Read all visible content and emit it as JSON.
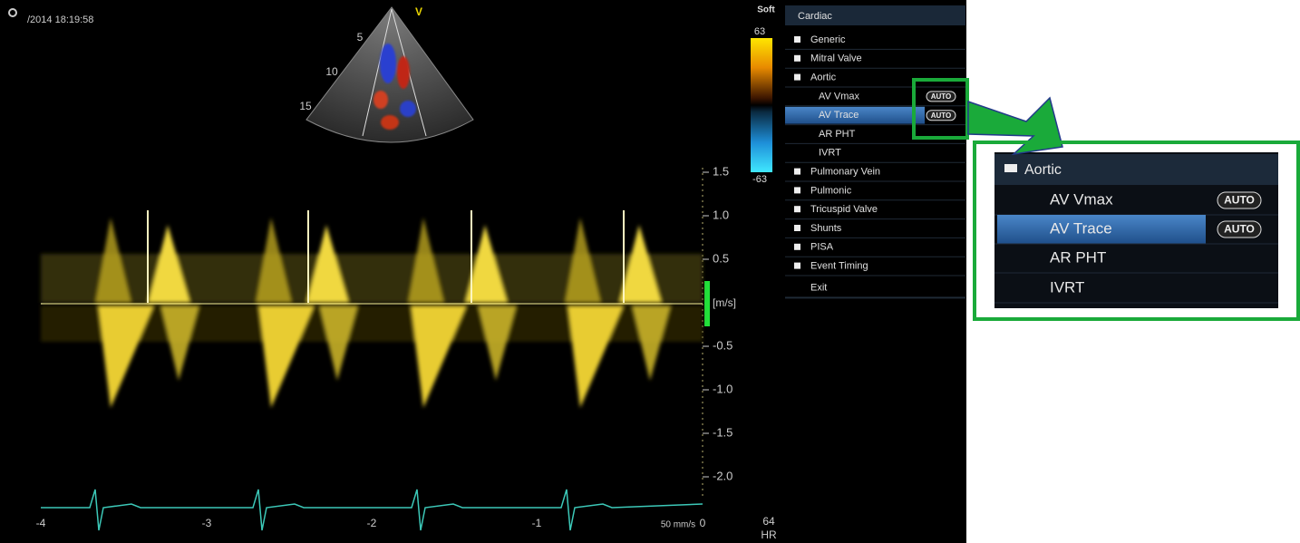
{
  "scan": {
    "timestamp": "/2014 18:19:58",
    "mode_label": "V",
    "depth_labels": [
      "5",
      "10",
      "15"
    ],
    "color_map": {
      "name": "Soft",
      "max": "63",
      "min": "-63"
    },
    "velocity_labels": [
      "1.5",
      "1.0",
      "0.5",
      "-0.5",
      "-1.0",
      "-1.5",
      "-2.0"
    ],
    "velocity_unit": "[m/s]",
    "time_labels": [
      "-4",
      "-3",
      "-2",
      "-1",
      "0"
    ],
    "sweep_speed": "50 mm/s",
    "heart_rate": "64",
    "heart_rate_label": "HR"
  },
  "menu": {
    "title": "Cardiac",
    "groups": [
      {
        "label": "Generic"
      },
      {
        "label": "Mitral Valve"
      },
      {
        "label": "Aortic",
        "items": [
          {
            "label": "AV Vmax",
            "button": "AUTO"
          },
          {
            "label": "AV Trace",
            "button": "AUTO",
            "selected": true
          },
          {
            "label": "AR PHT"
          },
          {
            "label": "IVRT"
          }
        ]
      },
      {
        "label": "Pulmonary Vein"
      },
      {
        "label": "Pulmonic"
      },
      {
        "label": "Tricuspid Valve"
      },
      {
        "label": "Shunts"
      },
      {
        "label": "PISA"
      },
      {
        "label": "Event Timing"
      }
    ],
    "exit": "Exit"
  },
  "zoom": {
    "title": "Aortic",
    "items": [
      {
        "label": "AV Vmax",
        "button": "AUTO"
      },
      {
        "label": "AV Trace",
        "button": "AUTO",
        "selected": true
      },
      {
        "label": "AR PHT"
      },
      {
        "label": "IVRT"
      }
    ]
  }
}
